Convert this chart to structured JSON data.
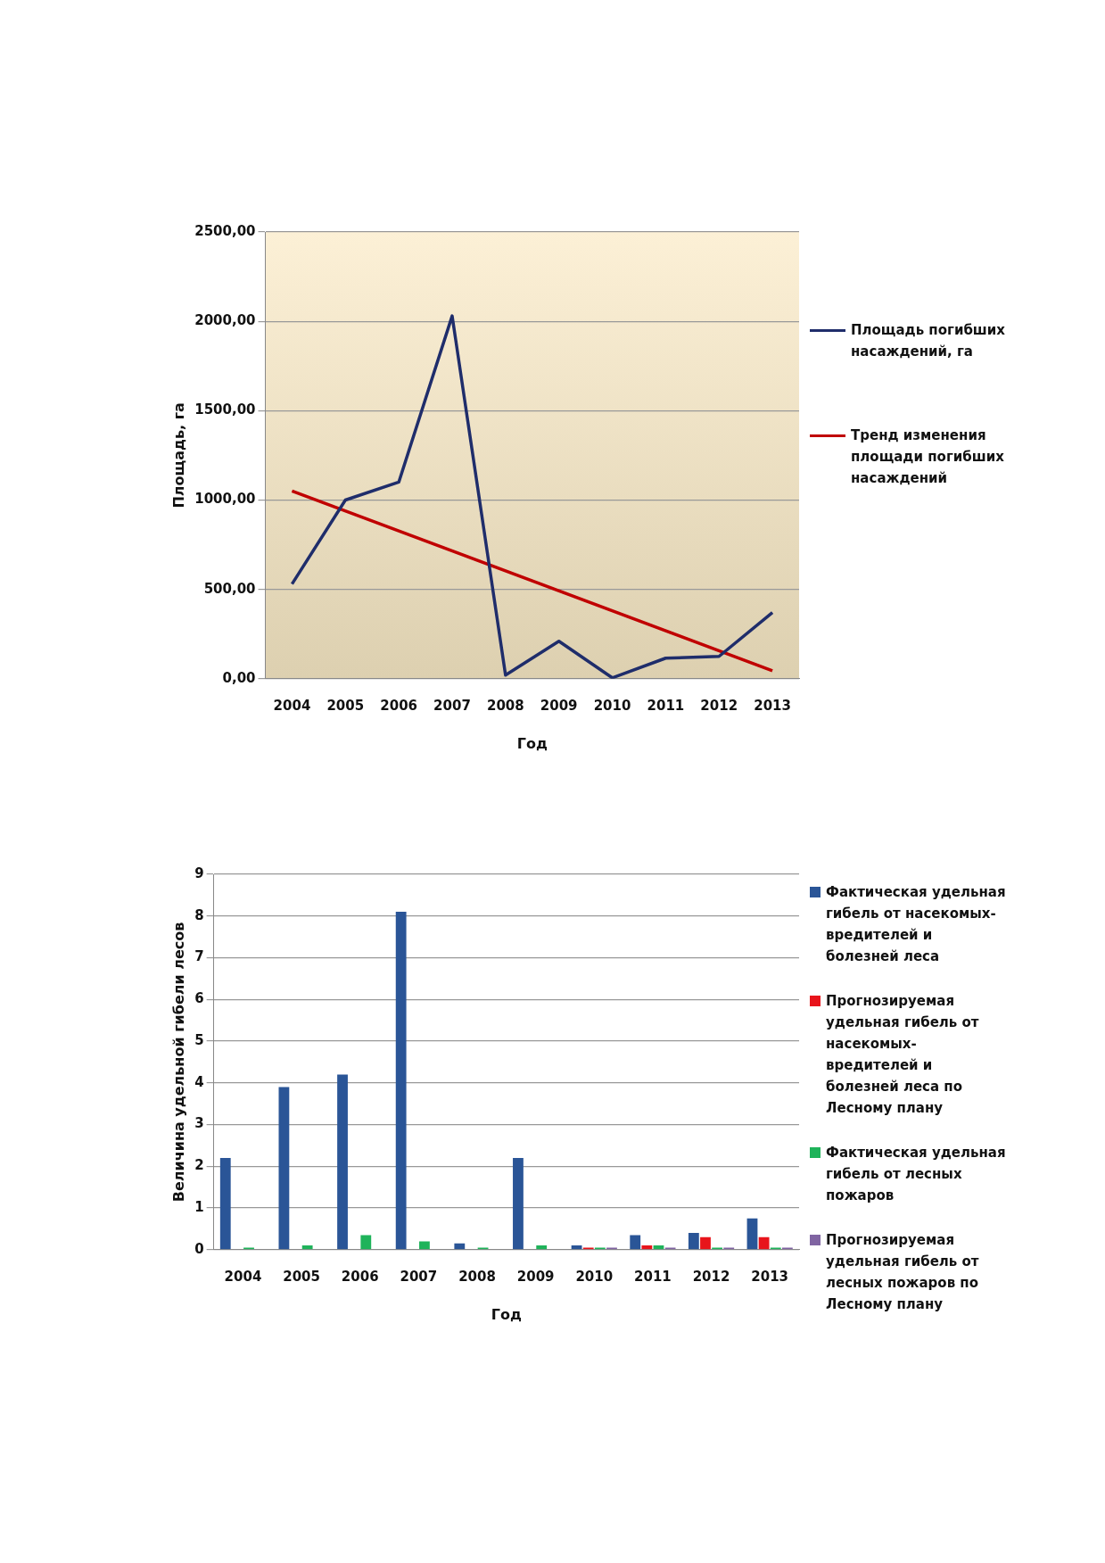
{
  "chart_data": [
    {
      "type": "line",
      "categories": [
        "2004",
        "2005",
        "2006",
        "2007",
        "2008",
        "2009",
        "2010",
        "2011",
        "2012",
        "2013"
      ],
      "xlabel": "Год",
      "ylabel": "Площадь, га",
      "ylim": [
        0,
        2500
      ],
      "yticks": [
        {
          "value": 0,
          "label": "0,00"
        },
        {
          "value": 500,
          "label": "500,00"
        },
        {
          "value": 1000,
          "label": "1000,00"
        },
        {
          "value": 1500,
          "label": "1500,00"
        },
        {
          "value": 2000,
          "label": "2000,00"
        },
        {
          "value": 2500,
          "label": "2500,00"
        }
      ],
      "grid": "y",
      "legend": "right",
      "marker": "none",
      "series": [
        {
          "name": "Площадь погибших насаждений, га",
          "color": "#1f2d6b",
          "values": [
            530,
            1000,
            1100,
            2030,
            20,
            210,
            5,
            115,
            125,
            370
          ]
        },
        {
          "name": "Тренд изменения площади погибших насаждений",
          "color": "#c00000",
          "values": [
            1050,
            null,
            null,
            null,
            null,
            null,
            null,
            null,
            null,
            45
          ]
        }
      ]
    },
    {
      "type": "bar",
      "categories": [
        "2004",
        "2005",
        "2006",
        "2007",
        "2008",
        "2009",
        "2010",
        "2011",
        "2012",
        "2013"
      ],
      "xlabel": "Год",
      "ylabel": "Величина удельной гибели лесов",
      "ylim": [
        0,
        9
      ],
      "yticks": [
        0,
        1,
        2,
        3,
        4,
        5,
        6,
        7,
        8,
        9
      ],
      "grid": "y",
      "legend": "right",
      "series": [
        {
          "name": "Фактическая удельная гибель от насекомых-вредителей и болезней леса",
          "color": "#2a5597",
          "values": [
            2.2,
            3.9,
            4.2,
            8.1,
            0.15,
            2.2,
            0.1,
            0.35,
            0.4,
            0.75
          ]
        },
        {
          "name": "Прогнозируемая удельная гибель от насекомых-вредителей и болезней леса по Лесному плану",
          "color": "#e8141b",
          "values": [
            null,
            null,
            null,
            null,
            null,
            null,
            0.05,
            0.1,
            0.3,
            0.3
          ]
        },
        {
          "name": "Фактическая удельная гибель от лесных пожаров",
          "color": "#1fb35a",
          "values": [
            0.05,
            0.1,
            0.35,
            0.2,
            0.05,
            0.1,
            0.05,
            0.1,
            0.05,
            0.05
          ]
        },
        {
          "name": "Прогнозируемая удельная гибель от лесных пожаров по Лесному плану",
          "color": "#8064a2",
          "values": [
            null,
            null,
            null,
            null,
            null,
            null,
            0.05,
            0.05,
            0.05,
            0.05
          ]
        }
      ]
    }
  ]
}
